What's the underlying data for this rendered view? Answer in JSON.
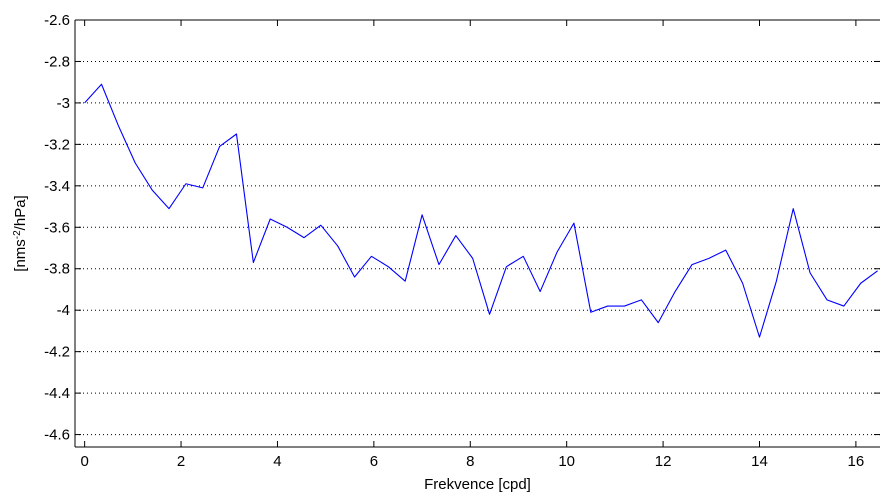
{
  "chart_data": {
    "type": "line",
    "title": "",
    "xlabel": "Frekvence [cpd]",
    "ylabel_base": "[nms",
    "ylabel_sup": "-2",
    "ylabel_tail": "/hPa]",
    "xlim": [
      -0.2,
      16.5
    ],
    "ylim": [
      -4.66,
      -2.6
    ],
    "xticks": [
      "0",
      "2",
      "4",
      "6",
      "8",
      "10",
      "12",
      "14",
      "16"
    ],
    "yticks": [
      "-2.6",
      "-2.8",
      "-3",
      "-3.2",
      "-3.4",
      "-3.6",
      "-3.8",
      "-4",
      "-4.2",
      "-4.4",
      "-4.6"
    ],
    "grid": "horizontal dotted",
    "line_color": "#0000ff",
    "series": [
      {
        "x": [
          0,
          0.35,
          0.7,
          1.05,
          1.4,
          1.75,
          2.1,
          2.45,
          2.8,
          3.15,
          3.5,
          3.85,
          4.2,
          4.55,
          4.9,
          5.25,
          5.6,
          5.95,
          6.3,
          6.65,
          7.0,
          7.35,
          7.7,
          8.05,
          8.4,
          8.75,
          9.1,
          9.45,
          9.8,
          10.15,
          10.5,
          10.85,
          11.2,
          11.55,
          11.9,
          12.25,
          12.6,
          12.95,
          13.3,
          13.65,
          14.0,
          14.35,
          14.7,
          15.05,
          15.4,
          15.75,
          16.1,
          16.45
        ],
        "values": [
          -3.0,
          -2.91,
          -3.11,
          -3.29,
          -3.42,
          -3.51,
          -3.39,
          -3.41,
          -3.21,
          -3.15,
          -3.77,
          -3.56,
          -3.6,
          -3.65,
          -3.59,
          -3.69,
          -3.84,
          -3.74,
          -3.79,
          -3.86,
          -3.54,
          -3.78,
          -3.64,
          -3.75,
          -4.02,
          -3.79,
          -3.74,
          -3.91,
          -3.72,
          -3.58,
          -4.01,
          -3.98,
          -3.98,
          -3.95,
          -4.06,
          -3.91,
          -3.78,
          -3.75,
          -3.71,
          -3.87,
          -4.13,
          -3.86,
          -3.51,
          -3.82,
          -3.95,
          -3.98,
          -3.87,
          -3.81
        ]
      }
    ]
  }
}
